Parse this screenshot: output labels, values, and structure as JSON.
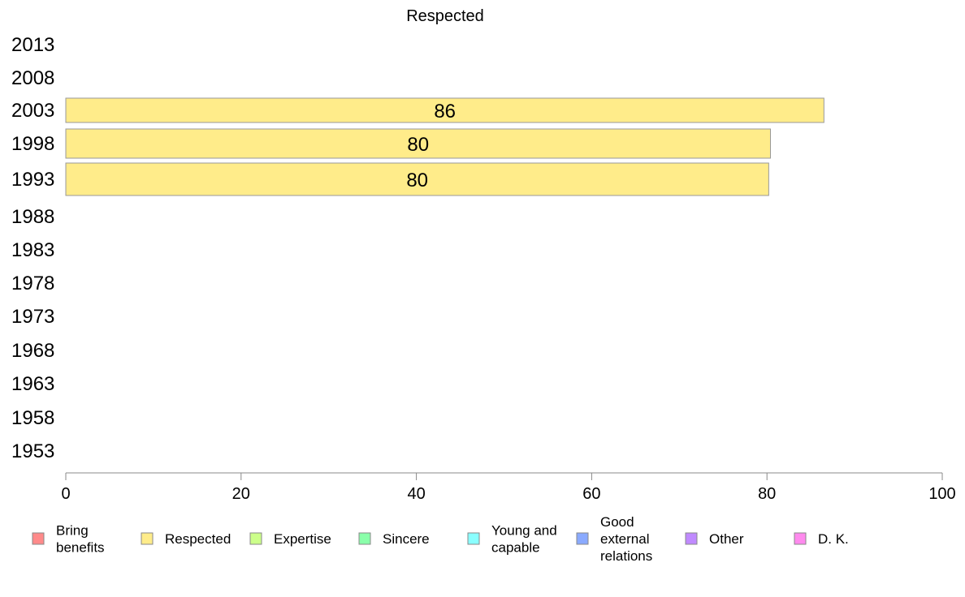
{
  "chart_data": {
    "type": "bar",
    "orientation": "horizontal",
    "title": "Respected",
    "categories": [
      "2013",
      "2008",
      "2003",
      "1998",
      "1993",
      "1988",
      "1983",
      "1978",
      "1973",
      "1968",
      "1963",
      "1958",
      "1953"
    ],
    "series": [
      {
        "name": "Respected",
        "values": [
          null,
          null,
          86.5,
          80.4,
          80.2,
          null,
          null,
          null,
          null,
          null,
          null,
          null,
          null
        ],
        "labels": [
          "",
          "",
          "86",
          "80",
          "80",
          "",
          "",
          "",
          "",
          "",
          "",
          "",
          ""
        ]
      }
    ],
    "xlim": [
      0,
      100
    ],
    "xticks": [
      0,
      20,
      40,
      60,
      80,
      100
    ],
    "grid": false,
    "legend_position": "bottom",
    "legend": [
      {
        "label": "Bring benefits",
        "color": "#ff8a8a"
      },
      {
        "label": "Respected",
        "color": "#ffec8a"
      },
      {
        "label": "Expertise",
        "color": "#ccff8a"
      },
      {
        "label": "Sincere",
        "color": "#8affaa"
      },
      {
        "label": "Young and capable",
        "color": "#8affff"
      },
      {
        "label": "Good external relations",
        "color": "#8aaaff"
      },
      {
        "label": "Other",
        "color": "#c08aff"
      },
      {
        "label": "D. K.",
        "color": "#ff8aee"
      }
    ],
    "bar_color": "#ffec8a"
  }
}
